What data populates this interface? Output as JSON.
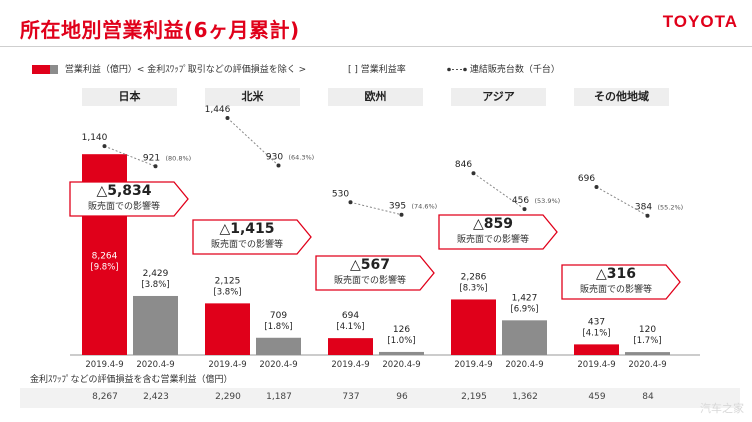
{
  "title": "所在地別営業利益(6ヶ月累計)",
  "logo": "TOYOTA",
  "legend": {
    "bar_label": "営業利益（億円）< 金利ｽﾜｯﾌﾟ取引などの評価損益を除く >",
    "margin_label": "[ ] 営業利益率",
    "units_label": "連結販売台数（千台）",
    "bar_color_2019": "#e0001a",
    "bar_color_2020": "#8c8c8c"
  },
  "footer": {
    "label": "金利ｽﾜｯﾌﾟなどの評価損益を含む営業利益（億円）"
  },
  "watermark": "汽车之家",
  "chart_data": {
    "type": "bar",
    "ylabel": "営業利益（億円）",
    "period_labels": [
      "2019.4-9",
      "2020.4-9"
    ],
    "groups": [
      {
        "region": "日本",
        "op_profit": [
          8264,
          2429
        ],
        "margin": [
          "[9.8%]",
          "[3.8%]"
        ],
        "units": [
          1140,
          921
        ],
        "units_ratio": "(80.8%)",
        "delta": "△5,834",
        "delta_note": "販売面での影響等",
        "incl_valuation": [
          8267,
          2423
        ]
      },
      {
        "region": "北米",
        "op_profit": [
          2125,
          709
        ],
        "margin": [
          "[3.8%]",
          "[1.8%]"
        ],
        "units": [
          1446,
          930
        ],
        "units_ratio": "(64.3%)",
        "delta": "△1,415",
        "delta_note": "販売面での影響等",
        "incl_valuation": [
          2290,
          1187
        ]
      },
      {
        "region": "欧州",
        "op_profit": [
          694,
          126
        ],
        "margin": [
          "[4.1%]",
          "[1.0%]"
        ],
        "units": [
          530,
          395
        ],
        "units_ratio": "(74.6%)",
        "delta": "△567",
        "delta_note": "販売面での影響等",
        "incl_valuation": [
          737,
          96
        ]
      },
      {
        "region": "アジア",
        "op_profit": [
          2286,
          1427
        ],
        "margin": [
          "[8.3%]",
          "[6.9%]"
        ],
        "units": [
          846,
          456
        ],
        "units_ratio": "(53.9%)",
        "delta": "△859",
        "delta_note": "販売面での影響等",
        "incl_valuation": [
          2195,
          1362
        ]
      },
      {
        "region": "その他地域",
        "op_profit": [
          437,
          120
        ],
        "margin": [
          "[4.1%]",
          "[1.7%]"
        ],
        "units": [
          696,
          384
        ],
        "units_ratio": "(55.2%)",
        "delta": "△316",
        "delta_note": "販売面での影響等",
        "incl_valuation": [
          459,
          84
        ]
      }
    ]
  }
}
